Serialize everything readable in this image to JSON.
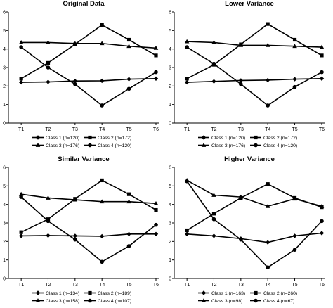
{
  "figure": {
    "colors": {
      "line": "#000000",
      "axis": "#000000",
      "background": "#ffffff"
    }
  },
  "chart_data": [
    {
      "type": "line",
      "title": "Original Data",
      "categories": [
        "T1",
        "T2",
        "T3",
        "T4",
        "T5",
        "T6"
      ],
      "ylim": [
        0,
        6
      ],
      "yticks": [
        "0",
        "1",
        "2",
        "3",
        "4",
        "5",
        "6"
      ],
      "grid": false,
      "legend_position": "bottom",
      "series": [
        {
          "name": "Class 1 (n=120)",
          "marker": "diamond",
          "values": [
            2.2,
            2.22,
            2.27,
            2.28,
            2.37,
            2.4
          ]
        },
        {
          "name": "Class 2 (n=172)",
          "marker": "square",
          "values": [
            2.4,
            3.25,
            4.25,
            5.3,
            4.5,
            3.65
          ]
        },
        {
          "name": "Class 3 (n=176)",
          "marker": "triangle",
          "values": [
            4.35,
            4.35,
            4.3,
            4.3,
            4.15,
            4.05
          ]
        },
        {
          "name": "Class 4 (n=120)",
          "marker": "circle",
          "values": [
            4.1,
            3.0,
            2.1,
            0.95,
            1.85,
            2.75
          ]
        }
      ]
    },
    {
      "type": "line",
      "title": "Lower Variance",
      "categories": [
        "T1",
        "T2",
        "T3",
        "T4",
        "T5",
        "T6"
      ],
      "ylim": [
        0,
        6
      ],
      "yticks": [
        "0",
        "1",
        "2",
        "3",
        "4",
        "5",
        "6"
      ],
      "grid": false,
      "legend_position": "bottom",
      "series": [
        {
          "name": "Class 1 (n=120)",
          "marker": "diamond",
          "values": [
            2.2,
            2.25,
            2.3,
            2.32,
            2.37,
            2.4
          ]
        },
        {
          "name": "Class 2 (n=172)",
          "marker": "square",
          "values": [
            2.4,
            3.15,
            4.25,
            5.35,
            4.5,
            3.65
          ]
        },
        {
          "name": "Class 3 (n=176)",
          "marker": "triangle",
          "values": [
            4.4,
            4.35,
            4.2,
            4.2,
            4.15,
            4.1
          ]
        },
        {
          "name": "Class 4 (n=120)",
          "marker": "circle",
          "values": [
            4.1,
            3.2,
            2.1,
            0.95,
            1.95,
            2.75
          ]
        }
      ]
    },
    {
      "type": "line",
      "title": "Similar Variance",
      "categories": [
        "T1",
        "T2",
        "T3",
        "T4",
        "T5",
        "T6"
      ],
      "ylim": [
        0,
        6
      ],
      "yticks": [
        "0",
        "1",
        "2",
        "3",
        "4",
        "5",
        "6"
      ],
      "grid": false,
      "legend_position": "bottom",
      "series": [
        {
          "name": "Class 1 (n=134)",
          "marker": "diamond",
          "values": [
            2.3,
            2.32,
            2.3,
            2.28,
            2.4,
            2.4
          ]
        },
        {
          "name": "Class 2 (n=189)",
          "marker": "square",
          "values": [
            2.5,
            3.2,
            4.3,
            5.3,
            4.55,
            3.7
          ]
        },
        {
          "name": "Class 3 (n=158)",
          "marker": "triangle",
          "values": [
            4.55,
            4.35,
            4.25,
            4.15,
            4.15,
            4.05
          ]
        },
        {
          "name": "Class 4 (n=107)",
          "marker": "circle",
          "values": [
            4.4,
            3.1,
            2.1,
            0.9,
            1.75,
            2.9
          ]
        }
      ]
    },
    {
      "type": "line",
      "title": "Higher Variance",
      "categories": [
        "T1",
        "T2",
        "T3",
        "T4",
        "T5",
        "T6"
      ],
      "ylim": [
        0,
        6
      ],
      "yticks": [
        "0",
        "1",
        "2",
        "3",
        "4",
        "5",
        "6"
      ],
      "grid": false,
      "legend_position": "bottom",
      "series": [
        {
          "name": "Class 1 (n=163)",
          "marker": "diamond",
          "values": [
            2.4,
            2.3,
            2.15,
            1.95,
            2.3,
            2.45
          ]
        },
        {
          "name": "Class 2 (n=260)",
          "marker": "square",
          "values": [
            2.6,
            3.5,
            4.35,
            5.1,
            4.35,
            3.85
          ]
        },
        {
          "name": "Class 3 (n=98)",
          "marker": "triangle",
          "values": [
            5.3,
            4.5,
            4.4,
            3.9,
            4.3,
            3.9
          ]
        },
        {
          "name": "Class 4 (n=67)",
          "marker": "circle",
          "values": [
            5.25,
            3.2,
            2.1,
            0.6,
            1.55,
            3.1
          ]
        }
      ]
    }
  ]
}
